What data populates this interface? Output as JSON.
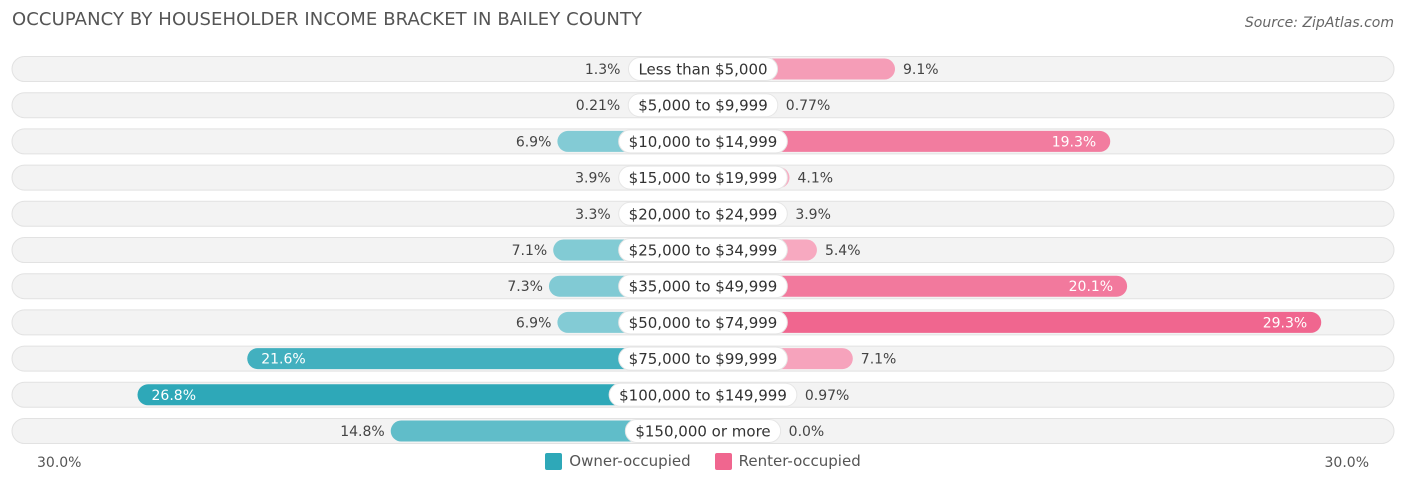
{
  "title": "OCCUPANCY BY HOUSEHOLDER INCOME BRACKET IN BAILEY COUNTY",
  "source": "Source: ZipAtlas.com",
  "chart_data": {
    "type": "bar",
    "orientation": "diverging-horizontal",
    "categories": [
      "Less than $5,000",
      "$5,000 to $9,999",
      "$10,000 to $14,999",
      "$15,000 to $19,999",
      "$20,000 to $24,999",
      "$25,000 to $34,999",
      "$35,000 to $49,999",
      "$50,000 to $74,999",
      "$75,000 to $99,999",
      "$100,000 to $149,999",
      "$150,000 or more"
    ],
    "series": [
      {
        "name": "Owner-occupied",
        "color": "#2ea8b8",
        "values": [
          1.3,
          0.21,
          6.9,
          3.9,
          3.3,
          7.1,
          7.3,
          6.9,
          21.6,
          26.8,
          14.8
        ],
        "labels": [
          "1.3%",
          "0.21%",
          "6.9%",
          "3.9%",
          "3.3%",
          "7.1%",
          "7.3%",
          "6.9%",
          "21.6%",
          "26.8%",
          "14.8%"
        ]
      },
      {
        "name": "Renter-occupied",
        "color": "#f0668f",
        "values": [
          9.1,
          0.77,
          19.3,
          4.1,
          3.9,
          5.4,
          20.1,
          29.3,
          7.1,
          0.97,
          0.0
        ],
        "labels": [
          "9.1%",
          "0.77%",
          "19.3%",
          "4.1%",
          "3.9%",
          "5.4%",
          "20.1%",
          "29.3%",
          "7.1%",
          "0.97%",
          "0.0%"
        ]
      }
    ],
    "xlim": [
      -30,
      30
    ],
    "axis_left_label": "30.0%",
    "axis_right_label": "30.0%",
    "legend_position": "bottom-center"
  }
}
